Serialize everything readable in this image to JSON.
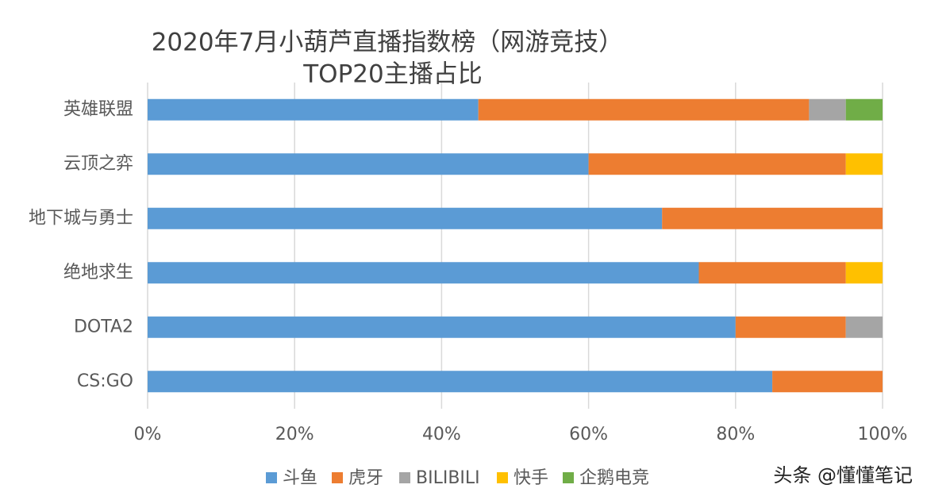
{
  "chart_data": {
    "type": "stacked-bar-horizontal",
    "title": [
      "2020年7月小葫芦直播指数榜（网游竞技）",
      "TOP20主播占比"
    ],
    "categories": [
      "英雄联盟",
      "云顶之弈",
      "地下城与勇士",
      "绝地求生",
      "DOTA2",
      "CS:GO"
    ],
    "series": [
      {
        "name": "斗鱼",
        "color": "#5b9bd5",
        "values": [
          45,
          60,
          70,
          75,
          80,
          85
        ]
      },
      {
        "name": "虎牙",
        "color": "#ed7d31",
        "values": [
          45,
          35,
          30,
          20,
          15,
          15
        ]
      },
      {
        "name": "BILIBILI",
        "color": "#a5a5a5",
        "values": [
          5,
          0,
          0,
          0,
          5,
          0
        ]
      },
      {
        "name": "快手",
        "color": "#ffc000",
        "values": [
          0,
          5,
          0,
          5,
          0,
          0
        ]
      },
      {
        "name": "企鹅电竞",
        "color": "#70ad47",
        "values": [
          5,
          0,
          0,
          0,
          0,
          0
        ]
      }
    ],
    "xlim": [
      0,
      100
    ],
    "xticks": [
      {
        "value": 0,
        "label": "0%"
      },
      {
        "value": 20,
        "label": "20%"
      },
      {
        "value": 40,
        "label": "40%"
      },
      {
        "value": 60,
        "label": "60%"
      },
      {
        "value": 80,
        "label": "80%"
      },
      {
        "value": 100,
        "label": "100%"
      }
    ],
    "grid": true,
    "legend": "bottom",
    "watermark": "头条 @懂懂笔记"
  }
}
